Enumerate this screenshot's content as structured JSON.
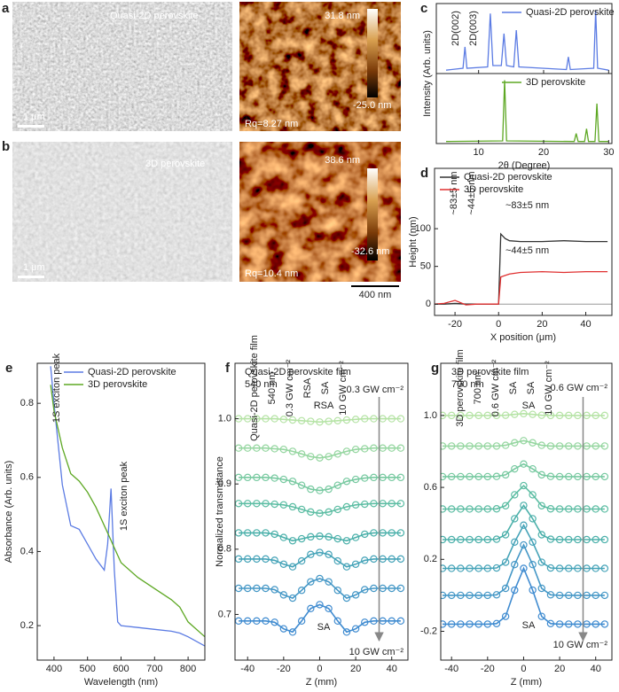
{
  "images": [
    {
      "label": "a",
      "sem_text": "Quasi-2D perovskite",
      "sem_scale": "1 μm",
      "afm_max": "31.8 nm",
      "afm_min": "-25.0 nm",
      "afm_rq": "Rq=8.27 nm"
    },
    {
      "label": "b",
      "sem_text": "3D perovskite",
      "sem_scale": "1 μm",
      "afm_max": "38.6 nm",
      "afm_min": "-32.6 nm",
      "afm_rq": "Rq=10.4 nm",
      "afm_scale": "400 nm"
    }
  ],
  "chart_data": [
    {
      "label": "c",
      "type": "line",
      "xlabel": "2θ (Degree)",
      "ylabel": "Intensity (Arb. units)",
      "xlim": [
        3.5,
        30.5
      ],
      "xticks": [
        10,
        20,
        30
      ],
      "subplots": [
        {
          "ylim": [
            0,
            1.05
          ],
          "annotations": [
            "2D(002)",
            "2D(003)"
          ],
          "series": [
            {
              "name": "Quasi-2D perovskite",
              "color": "#5b7be3",
              "x": [
                5,
                7.6,
                7.9,
                8.2,
                11.4,
                11.8,
                12.2,
                13.5,
                13.9,
                14.3,
                15.4,
                15.8,
                16.2,
                23.5,
                23.8,
                24.1,
                27.7,
                28.0,
                28.3,
                30
              ],
              "values": [
                0.05,
                0.08,
                0.4,
                0.08,
                0.1,
                0.9,
                0.12,
                0.12,
                0.6,
                0.12,
                0.1,
                0.65,
                0.1,
                0.06,
                0.25,
                0.06,
                0.08,
                0.95,
                0.08,
                0.05
              ]
            }
          ]
        },
        {
          "ylim": [
            0,
            1.05
          ],
          "series": [
            {
              "name": "3D perovskite",
              "color": "#5ea824",
              "x": [
                5,
                13.7,
                14.0,
                14.3,
                24.7,
                25.0,
                25.3,
                26.3,
                26.6,
                26.9,
                27.9,
                28.2,
                28.5,
                30
              ],
              "values": [
                0.03,
                0.04,
                0.95,
                0.04,
                0.03,
                0.15,
                0.03,
                0.03,
                0.22,
                0.03,
                0.03,
                0.6,
                0.03,
                0.03
              ]
            }
          ]
        }
      ]
    },
    {
      "label": "d",
      "type": "line",
      "xlabel": "X position (μm)",
      "ylabel": "Height (nm)",
      "xlim": [
        -29.4,
        52
      ],
      "ylim": [
        -15,
        180
      ],
      "xticks": [
        -20,
        0,
        20,
        40
      ],
      "yticks": [
        0,
        50,
        100
      ],
      "x": [
        -30,
        -25,
        -20,
        -15,
        -10,
        -5,
        -1,
        0,
        1,
        3,
        5,
        10,
        20,
        30,
        40,
        50
      ],
      "series": [
        {
          "name": "Quasi-2D perovskite",
          "color": "#333333",
          "values": [
            0,
            0,
            1,
            0,
            0,
            0,
            0,
            0,
            93,
            87,
            84,
            83,
            83,
            84,
            83,
            83
          ]
        },
        {
          "name": "3D perovskite",
          "color": "#e03030",
          "values": [
            0,
            1,
            5,
            -1,
            0,
            0,
            0,
            0,
            36,
            38,
            40,
            42,
            43,
            42,
            43,
            43
          ]
        }
      ],
      "annotations": [
        "~83±5 nm",
        "~44±5 nm"
      ]
    },
    {
      "label": "e",
      "type": "line",
      "xlabel": "Wavelength (nm)",
      "ylabel": "Absorbance (Arb. units)",
      "xlim": [
        350,
        850
      ],
      "ylim": [
        0.107,
        0.908
      ],
      "xticks": [
        400,
        500,
        600,
        700,
        800
      ],
      "yticks": [
        0.2,
        0.4,
        0.6,
        0.8
      ],
      "x": [
        390,
        400,
        425,
        450,
        475,
        500,
        525,
        550,
        560,
        570,
        580,
        590,
        600,
        650,
        700,
        750,
        775,
        800,
        850
      ],
      "series": [
        {
          "name": "Quasi-2D perovskite",
          "color": "#5b7be3",
          "values": [
            0.9,
            0.8,
            0.58,
            0.47,
            0.46,
            0.42,
            0.38,
            0.35,
            0.42,
            0.57,
            0.35,
            0.21,
            0.2,
            0.195,
            0.19,
            0.185,
            0.18,
            0.17,
            0.145
          ]
        },
        {
          "name": "3D perovskite",
          "color": "#5ea824",
          "values": [
            0.85,
            0.78,
            0.68,
            0.61,
            0.59,
            0.56,
            0.52,
            0.47,
            0.45,
            0.43,
            0.41,
            0.39,
            0.37,
            0.33,
            0.3,
            0.27,
            0.25,
            0.21,
            0.17
          ]
        }
      ],
      "annotations": [
        "1S exciton peak"
      ]
    },
    {
      "label": "f",
      "type": "scatter",
      "xlabel": "Z (mm)",
      "ylabel": "Normalized transmittance",
      "xlim": [
        -47,
        49
      ],
      "ylim": [
        0.63,
        1.085
      ],
      "xticks": [
        -40,
        -20,
        0,
        20,
        40
      ],
      "yticks": [
        0.7,
        0.8,
        0.9,
        {
          "value": 1,
          "label": "1.0"
        }
      ],
      "x": [
        -45,
        -40,
        -35,
        -30,
        -25,
        -20,
        -15,
        -10,
        -5,
        0,
        5,
        10,
        15,
        20,
        25,
        30,
        35,
        40,
        45
      ],
      "series": [
        {
          "color": "#b5e3a5",
          "values": [
            1,
            1,
            1,
            1,
            1,
            0.999,
            0.998,
            0.997,
            0.996,
            0.995,
            0.996,
            0.997,
            0.998,
            0.999,
            1,
            1,
            1,
            1,
            1
          ]
        },
        {
          "color": "#95d6a0",
          "values": [
            0.955,
            0.955,
            0.955,
            0.955,
            0.954,
            0.953,
            0.95,
            0.946,
            0.942,
            0.94,
            0.942,
            0.946,
            0.95,
            0.953,
            0.954,
            0.955,
            0.955,
            0.955,
            0.955
          ]
        },
        {
          "color": "#77c9a0",
          "values": [
            0.91,
            0.91,
            0.91,
            0.91,
            0.909,
            0.907,
            0.904,
            0.898,
            0.892,
            0.89,
            0.892,
            0.898,
            0.904,
            0.907,
            0.909,
            0.91,
            0.91,
            0.91,
            0.91
          ]
        },
        {
          "color": "#5cbda3",
          "values": [
            0.87,
            0.87,
            0.87,
            0.87,
            0.869,
            0.868,
            0.865,
            0.861,
            0.857,
            0.855,
            0.857,
            0.861,
            0.865,
            0.868,
            0.869,
            0.87,
            0.87,
            0.87,
            0.87
          ]
        },
        {
          "color": "#4bb0aa",
          "values": [
            0.825,
            0.825,
            0.825,
            0.825,
            0.823,
            0.818,
            0.813,
            0.816,
            0.819,
            0.82,
            0.819,
            0.816,
            0.813,
            0.818,
            0.823,
            0.825,
            0.825,
            0.825,
            0.825
          ]
        },
        {
          "color": "#45a3b8",
          "values": [
            0.785,
            0.785,
            0.785,
            0.785,
            0.783,
            0.777,
            0.773,
            0.782,
            0.792,
            0.795,
            0.792,
            0.782,
            0.773,
            0.777,
            0.783,
            0.785,
            0.785,
            0.785,
            0.785
          ]
        },
        {
          "color": "#4497c6",
          "values": [
            0.74,
            0.74,
            0.74,
            0.74,
            0.738,
            0.73,
            0.725,
            0.737,
            0.75,
            0.755,
            0.75,
            0.737,
            0.725,
            0.73,
            0.738,
            0.74,
            0.74,
            0.74,
            0.74
          ]
        },
        {
          "color": "#3f8bd0",
          "values": [
            0.69,
            0.69,
            0.69,
            0.69,
            0.688,
            0.678,
            0.673,
            0.69,
            0.709,
            0.715,
            0.709,
            0.69,
            0.673,
            0.678,
            0.688,
            0.69,
            0.69,
            0.69,
            0.69
          ]
        }
      ],
      "annotations": [
        "Quasi-2D perovskite film",
        "540 nm",
        "0.3 GW cm⁻²",
        "RSA",
        "SA",
        "10 GW cm⁻²"
      ]
    },
    {
      "label": "g",
      "type": "scatter",
      "xlabel": "Z (mm)",
      "xlim": [
        -46,
        49
      ],
      "ylim": [
        -0.36,
        1.29
      ],
      "xticks": [
        -40,
        -20,
        0,
        20,
        40
      ],
      "yticks": [
        -0.2,
        0.2,
        0.6,
        {
          "value": 1,
          "label": "1.0"
        }
      ],
      "x": [
        -45,
        -40,
        -35,
        -30,
        -25,
        -20,
        -15,
        -10,
        -5,
        0,
        5,
        10,
        15,
        20,
        25,
        30,
        35,
        40,
        45
      ],
      "series": [
        {
          "color": "#b5e3a5",
          "values": [
            1,
            1,
            1,
            1,
            1,
            1,
            1,
            1.001,
            1.006,
            1.01,
            1.006,
            1.001,
            1,
            1,
            1,
            1,
            1,
            1,
            1
          ]
        },
        {
          "color": "#95d6a0",
          "values": [
            0.83,
            0.83,
            0.83,
            0.83,
            0.83,
            0.83,
            0.83,
            0.834,
            0.848,
            0.86,
            0.848,
            0.834,
            0.83,
            0.83,
            0.83,
            0.83,
            0.83,
            0.83,
            0.83
          ]
        },
        {
          "color": "#77c9a0",
          "values": [
            0.66,
            0.66,
            0.66,
            0.66,
            0.66,
            0.66,
            0.661,
            0.67,
            0.703,
            0.73,
            0.703,
            0.67,
            0.661,
            0.66,
            0.66,
            0.66,
            0.66,
            0.66,
            0.66
          ]
        },
        {
          "color": "#5cbda3",
          "values": [
            0.48,
            0.48,
            0.48,
            0.48,
            0.48,
            0.48,
            0.481,
            0.498,
            0.559,
            0.61,
            0.559,
            0.498,
            0.481,
            0.48,
            0.48,
            0.48,
            0.48,
            0.48,
            0.48
          ]
        },
        {
          "color": "#4bb0aa",
          "values": [
            0.31,
            0.31,
            0.31,
            0.31,
            0.31,
            0.31,
            0.312,
            0.337,
            0.426,
            0.5,
            0.426,
            0.337,
            0.312,
            0.31,
            0.31,
            0.31,
            0.31,
            0.31,
            0.31
          ]
        },
        {
          "color": "#45a3b8",
          "values": [
            0.15,
            0.15,
            0.15,
            0.15,
            0.15,
            0.15,
            0.152,
            0.184,
            0.296,
            0.39,
            0.296,
            0.184,
            0.152,
            0.15,
            0.15,
            0.15,
            0.15,
            0.15,
            0.15
          ]
        },
        {
          "color": "#4497c6",
          "values": [
            0,
            0,
            0,
            0,
            0,
            0,
            0.003,
            0.039,
            0.171,
            0.28,
            0.171,
            0.039,
            0.003,
            0,
            0,
            0,
            0,
            0,
            0
          ]
        },
        {
          "color": "#3f8bd0",
          "values": [
            -0.16,
            -0.16,
            -0.16,
            -0.16,
            -0.16,
            -0.16,
            -0.157,
            -0.117,
            0.029,
            0.15,
            0.029,
            -0.117,
            -0.157,
            -0.16,
            -0.16,
            -0.16,
            -0.16,
            -0.16,
            -0.16
          ]
        }
      ],
      "annotations": [
        "3D perovskite film",
        "700 nm",
        "0.6 GW cm⁻²",
        "SA",
        "SA",
        "10 GW cm⁻²"
      ]
    }
  ]
}
